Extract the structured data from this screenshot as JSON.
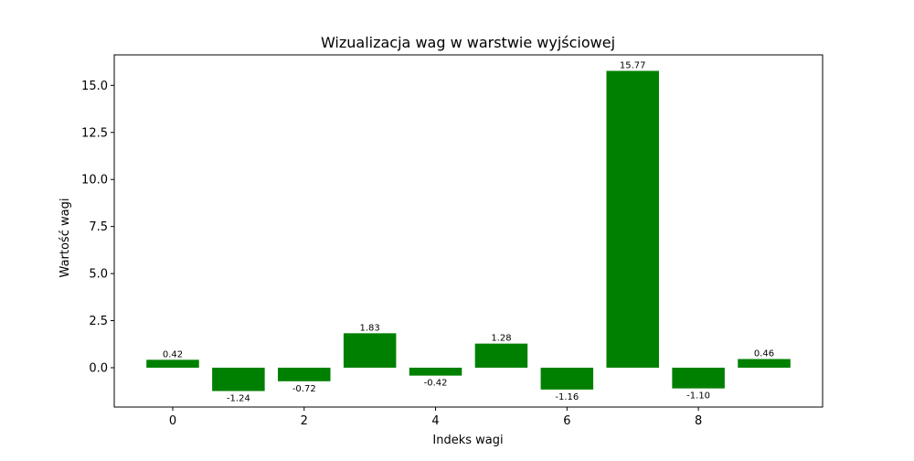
{
  "chart_data": {
    "type": "bar",
    "title": "Wizualizacja wag w warstwie wyjściowej",
    "xlabel": "Indeks wagi",
    "ylabel": "Wartość wagi",
    "x": [
      0,
      1,
      2,
      3,
      4,
      5,
      6,
      7,
      8,
      9
    ],
    "values": [
      0.42,
      -1.24,
      -0.72,
      1.83,
      -0.42,
      1.28,
      -1.16,
      15.77,
      -1.1,
      0.46
    ],
    "data_labels": [
      "0.42",
      "-1.24",
      "-0.72",
      "1.83",
      "-0.42",
      "1.28",
      "-1.16",
      "15.77",
      "-1.10",
      "0.46"
    ],
    "bar_color": "#008000",
    "xlim": [
      -0.89,
      9.89
    ],
    "ylim": [
      -2.09,
      16.62
    ],
    "xticks": [
      0,
      2,
      4,
      6,
      8
    ],
    "xtick_labels": [
      "0",
      "2",
      "4",
      "6",
      "8"
    ],
    "yticks": [
      0.0,
      2.5,
      5.0,
      7.5,
      10.0,
      12.5,
      15.0
    ],
    "ytick_labels": [
      "0.0",
      "2.5",
      "5.0",
      "7.5",
      "10.0",
      "12.5",
      "15.0"
    ],
    "grid": false,
    "legend": null
  }
}
